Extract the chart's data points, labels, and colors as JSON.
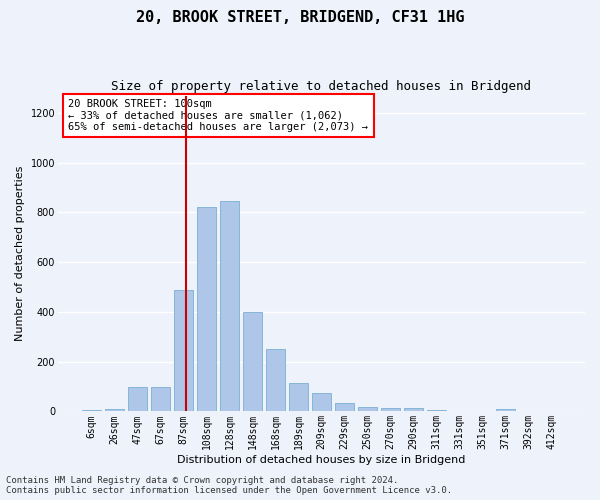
{
  "title_line1": "20, BROOK STREET, BRIDGEND, CF31 1HG",
  "title_line2": "Size of property relative to detached houses in Bridgend",
  "xlabel": "Distribution of detached houses by size in Bridgend",
  "ylabel": "Number of detached properties",
  "bar_labels": [
    "6sqm",
    "26sqm",
    "47sqm",
    "67sqm",
    "87sqm",
    "108sqm",
    "128sqm",
    "148sqm",
    "168sqm",
    "189sqm",
    "209sqm",
    "229sqm",
    "250sqm",
    "270sqm",
    "290sqm",
    "311sqm",
    "331sqm",
    "351sqm",
    "371sqm",
    "392sqm",
    "412sqm"
  ],
  "bar_values": [
    5,
    10,
    100,
    100,
    490,
    820,
    848,
    400,
    250,
    113,
    75,
    35,
    18,
    12,
    12,
    5,
    3,
    3,
    10,
    3,
    3
  ],
  "bar_color": "#aec6e8",
  "bar_edgecolor": "#7bafd4",
  "vline_color": "#cc0000",
  "annotation_text": "20 BROOK STREET: 100sqm\n← 33% of detached houses are smaller (1,062)\n65% of semi-detached houses are larger (2,073) →",
  "ylim": [
    0,
    1270
  ],
  "yticks": [
    0,
    200,
    400,
    600,
    800,
    1000,
    1200
  ],
  "footer_line1": "Contains HM Land Registry data © Crown copyright and database right 2024.",
  "footer_line2": "Contains public sector information licensed under the Open Government Licence v3.0.",
  "background_color": "#eef2fb",
  "grid_color": "#ffffff",
  "title_fontsize": 11,
  "subtitle_fontsize": 9,
  "label_fontsize": 8,
  "tick_fontsize": 7,
  "footer_fontsize": 6.5,
  "annot_fontsize": 7.5
}
